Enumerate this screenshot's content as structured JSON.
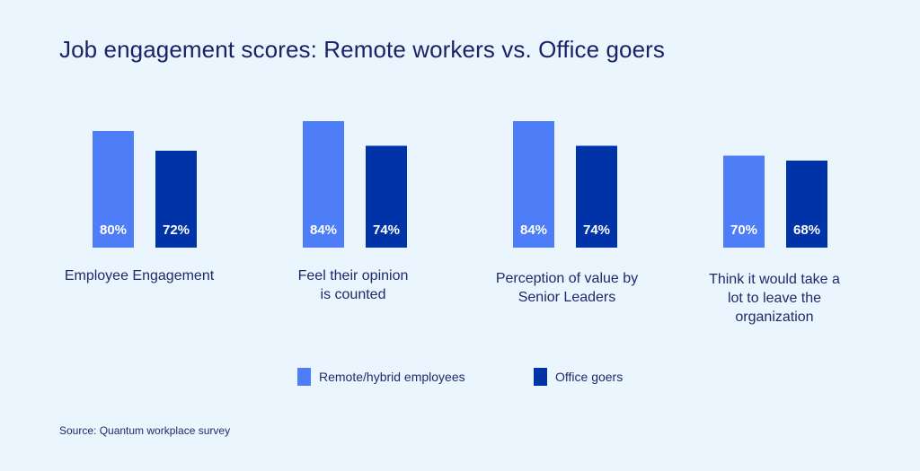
{
  "chart_data": {
    "type": "bar",
    "title": "Job engagement scores: Remote workers vs. Office goers",
    "categories": [
      "Employee Engagement",
      "Feel their opinion is counted",
      "Perception of value by Senior Leaders",
      "Think it would take a lot to leave the organization"
    ],
    "category_lines": [
      [
        "Employee Engagement"
      ],
      [
        "Feel their opinion",
        "is counted"
      ],
      [
        "Perception of value by",
        "Senior Leaders"
      ],
      [
        "Think it would take a",
        "lot to leave the",
        "organization"
      ]
    ],
    "series": [
      {
        "name": "Remote/hybrid employees",
        "color": "#4d7ef7",
        "values": [
          80,
          84,
          84,
          70
        ],
        "labels": [
          "80%",
          "84%",
          "84%",
          "70%"
        ]
      },
      {
        "name": "Office goers",
        "color": "#0033a8",
        "values": [
          72,
          74,
          74,
          68
        ],
        "labels": [
          "72%",
          "74%",
          "74%",
          "68%"
        ]
      }
    ],
    "y_unit": "%",
    "grid": false,
    "legend_position": "bottom"
  },
  "source": "Source: Quantum workplace survey",
  "colors": {
    "background": "#eaf5fd",
    "text": "#1f2a6b"
  }
}
